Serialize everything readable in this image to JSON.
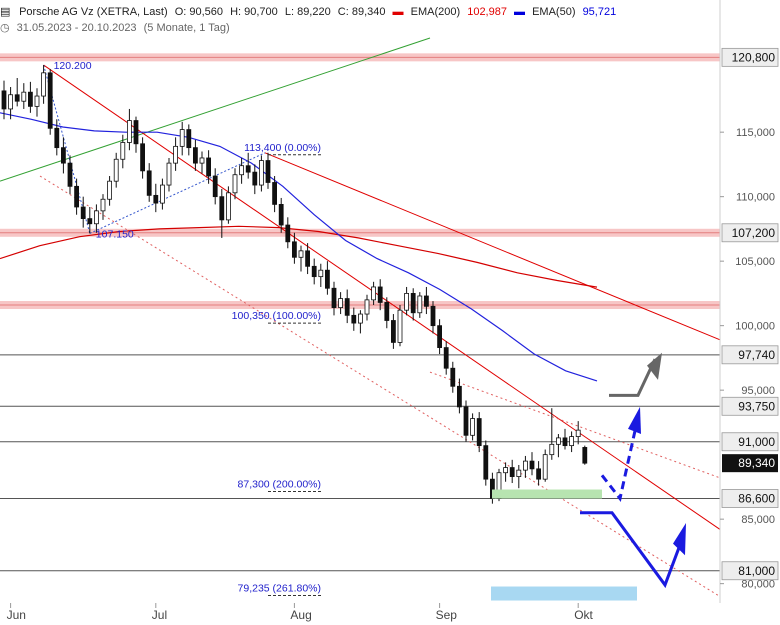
{
  "header": {
    "name": "Porsche AG Vz (XETRA, Last)",
    "open": "O: 90,560",
    "high": "H: 90,700",
    "low": "L: 89,220",
    "close": "C: 89,340",
    "ema200_label": "EMA(200)",
    "ema200_value": "102,987",
    "ema50_label": "EMA(50)",
    "ema50_value": "95,721",
    "range": "31.05.2023 - 20.10.2023",
    "period": "(5 Monate, 1 Tag)"
  },
  "chart_data": {
    "type": "candlestick",
    "x_labels": [
      {
        "label": "Jun",
        "index": 1
      },
      {
        "label": "Jul",
        "index": 23
      },
      {
        "label": "Aug",
        "index": 44
      },
      {
        "label": "Sep",
        "index": 66
      },
      {
        "label": "Okt",
        "index": 87
      }
    ],
    "ylim": [
      78.5,
      122.3
    ],
    "yticks": [
      {
        "value": 80,
        "label": "80,000"
      },
      {
        "value": 85,
        "label": "85,000"
      },
      {
        "value": 95,
        "label": "95,000"
      },
      {
        "value": 100,
        "label": "100,000"
      },
      {
        "value": 105,
        "label": "105,000"
      },
      {
        "value": 110,
        "label": "110,000"
      },
      {
        "value": 115,
        "label": "115,000"
      }
    ],
    "candles": [
      [
        118.2,
        119.0,
        116.0,
        116.8
      ],
      [
        116.8,
        118.5,
        116.0,
        117.9
      ],
      [
        117.9,
        119.2,
        117.0,
        117.4
      ],
      [
        117.4,
        118.8,
        116.8,
        118.1
      ],
      [
        118.1,
        118.9,
        116.5,
        117.0
      ],
      [
        117.0,
        118.4,
        116.2,
        117.8
      ],
      [
        117.8,
        120.2,
        117.2,
        119.6
      ],
      [
        119.6,
        119.9,
        114.8,
        115.3
      ],
      [
        115.3,
        116.0,
        113.2,
        113.8
      ],
      [
        113.8,
        114.6,
        111.8,
        112.6
      ],
      [
        112.6,
        113.2,
        110.2,
        110.8
      ],
      [
        110.8,
        111.4,
        108.6,
        109.2
      ],
      [
        109.2,
        110.0,
        107.6,
        108.3
      ],
      [
        108.3,
        109.2,
        107.15,
        107.9
      ],
      [
        107.9,
        109.4,
        107.2,
        108.9
      ],
      [
        108.9,
        110.2,
        108.2,
        109.8
      ],
      [
        109.8,
        111.6,
        109.3,
        111.2
      ],
      [
        111.2,
        113.4,
        110.7,
        112.9
      ],
      [
        112.9,
        114.8,
        112.2,
        114.2
      ],
      [
        114.2,
        116.8,
        113.6,
        115.9
      ],
      [
        115.9,
        116.2,
        113.4,
        114.1
      ],
      [
        114.1,
        114.6,
        111.4,
        112.0
      ],
      [
        112.0,
        112.6,
        109.6,
        110.1
      ],
      [
        110.1,
        111.0,
        108.8,
        109.5
      ],
      [
        109.5,
        111.4,
        109.0,
        110.9
      ],
      [
        110.9,
        113.0,
        110.4,
        112.6
      ],
      [
        112.6,
        114.6,
        112.0,
        113.9
      ],
      [
        113.9,
        115.8,
        113.2,
        115.2
      ],
      [
        115.2,
        115.6,
        113.2,
        113.8
      ],
      [
        113.8,
        114.4,
        112.0,
        112.6
      ],
      [
        112.6,
        113.5,
        111.8,
        113.0
      ],
      [
        113.0,
        113.6,
        111.0,
        111.6
      ],
      [
        111.6,
        112.2,
        109.4,
        110.0
      ],
      [
        110.0,
        110.6,
        106.8,
        108.2
      ],
      [
        108.2,
        110.8,
        107.9,
        110.3
      ],
      [
        110.3,
        112.2,
        109.8,
        111.7
      ],
      [
        111.7,
        113.0,
        111.0,
        112.4
      ],
      [
        112.4,
        113.4,
        111.4,
        111.9
      ],
      [
        111.9,
        112.5,
        110.2,
        110.9
      ],
      [
        110.9,
        113.2,
        110.4,
        112.8
      ],
      [
        112.8,
        113.4,
        110.6,
        111.1
      ],
      [
        111.1,
        111.6,
        108.8,
        109.4
      ],
      [
        109.4,
        109.9,
        107.2,
        107.8
      ],
      [
        107.8,
        108.4,
        106.0,
        106.5
      ],
      [
        106.5,
        107.2,
        104.8,
        105.3
      ],
      [
        105.3,
        106.2,
        104.2,
        105.8
      ],
      [
        105.8,
        106.4,
        104.0,
        104.6
      ],
      [
        104.6,
        105.2,
        103.2,
        103.8
      ],
      [
        103.8,
        104.8,
        103.0,
        104.3
      ],
      [
        104.3,
        105.0,
        102.4,
        102.9
      ],
      [
        102.9,
        103.4,
        100.8,
        101.4
      ],
      [
        101.4,
        102.6,
        100.9,
        102.1
      ],
      [
        102.1,
        102.8,
        100.2,
        100.8
      ],
      [
        100.8,
        101.4,
        99.6,
        100.2
      ],
      [
        100.2,
        101.2,
        99.4,
        100.9
      ],
      [
        100.9,
        102.4,
        100.4,
        102.0
      ],
      [
        102.0,
        103.4,
        101.6,
        103.0
      ],
      [
        103.0,
        103.6,
        101.2,
        101.8
      ],
      [
        101.8,
        102.2,
        99.8,
        100.4
      ],
      [
        100.4,
        100.9,
        98.2,
        98.7
      ],
      [
        98.7,
        101.6,
        98.4,
        101.2
      ],
      [
        101.2,
        103.0,
        100.8,
        102.5
      ],
      [
        102.5,
        102.9,
        100.4,
        101.0
      ],
      [
        101.0,
        102.6,
        100.6,
        102.3
      ],
      [
        102.3,
        103.0,
        100.9,
        101.5
      ],
      [
        101.5,
        101.9,
        99.4,
        100.0
      ],
      [
        100.0,
        100.5,
        97.8,
        98.3
      ],
      [
        98.3,
        98.8,
        96.2,
        96.7
      ],
      [
        96.7,
        97.2,
        94.8,
        95.3
      ],
      [
        95.3,
        95.9,
        93.2,
        93.7
      ],
      [
        93.7,
        94.2,
        91.0,
        91.5
      ],
      [
        91.5,
        93.2,
        91.1,
        92.8
      ],
      [
        92.8,
        93.3,
        90.2,
        90.7
      ],
      [
        90.7,
        91.1,
        87.6,
        88.1
      ],
      [
        88.1,
        88.6,
        86.2,
        86.6
      ],
      [
        86.6,
        88.9,
        86.4,
        88.6
      ],
      [
        88.6,
        89.4,
        87.9,
        89.0
      ],
      [
        89.0,
        89.6,
        87.8,
        88.3
      ],
      [
        88.3,
        89.2,
        87.4,
        88.8
      ],
      [
        88.8,
        89.9,
        88.2,
        89.5
      ],
      [
        89.5,
        90.2,
        88.4,
        88.9
      ],
      [
        88.9,
        89.5,
        87.6,
        88.1
      ],
      [
        88.1,
        90.4,
        87.9,
        90.0
      ],
      [
        90.0,
        93.6,
        89.6,
        90.8
      ],
      [
        90.8,
        91.6,
        89.8,
        91.3
      ],
      [
        91.3,
        92.0,
        90.4,
        90.7
      ],
      [
        90.7,
        91.8,
        90.2,
        91.4
      ],
      [
        91.4,
        92.6,
        90.8,
        91.9
      ],
      [
        90.56,
        90.7,
        89.22,
        89.34
      ]
    ],
    "ema200": [
      105.2,
      106.2,
      106.9,
      107.3,
      107.5,
      107.6,
      107.7,
      107.6,
      107.3,
      106.8,
      106.2,
      105.6,
      104.9,
      104.1,
      103.5,
      102.987
    ],
    "ema50": [
      116.5,
      116.0,
      115.4,
      115.1,
      115.0,
      115.0,
      114.6,
      113.9,
      112.6,
      110.8,
      108.6,
      106.6,
      105.2,
      104.1,
      102.8,
      101.3,
      99.6,
      97.8,
      96.5,
      95.721
    ],
    "horizontal_levels": [
      {
        "value": 120.8,
        "label": "120,800",
        "band": true
      },
      {
        "value": 107.2,
        "label": "107,200",
        "band": true
      },
      {
        "value": 101.6,
        "label": "",
        "band": true
      },
      {
        "value": 97.74,
        "label": "97,740",
        "band": false
      },
      {
        "value": 93.75,
        "label": "93,750",
        "band": false
      },
      {
        "value": 91.0,
        "label": "91,000",
        "band": false
      },
      {
        "value": 86.6,
        "label": "86,600",
        "band": false
      },
      {
        "value": 81.0,
        "label": "81,000",
        "band": false
      }
    ],
    "last_price": {
      "value": 89.34,
      "label": "89,340"
    },
    "fibonacci": [
      {
        "value": 113.4,
        "label": "113,400 (0.00%)"
      },
      {
        "value": 100.35,
        "label": "100,350 (100.00%)"
      },
      {
        "value": 87.3,
        "label": "87,300 (200.00%)"
      },
      {
        "value": 79.235,
        "label": "79,235 (261.80%)"
      }
    ],
    "annotations": [
      {
        "label": "120.200",
        "index": 6,
        "value": 120.2
      },
      {
        "label": "107.150",
        "index": 13,
        "value": 107.15
      }
    ]
  }
}
